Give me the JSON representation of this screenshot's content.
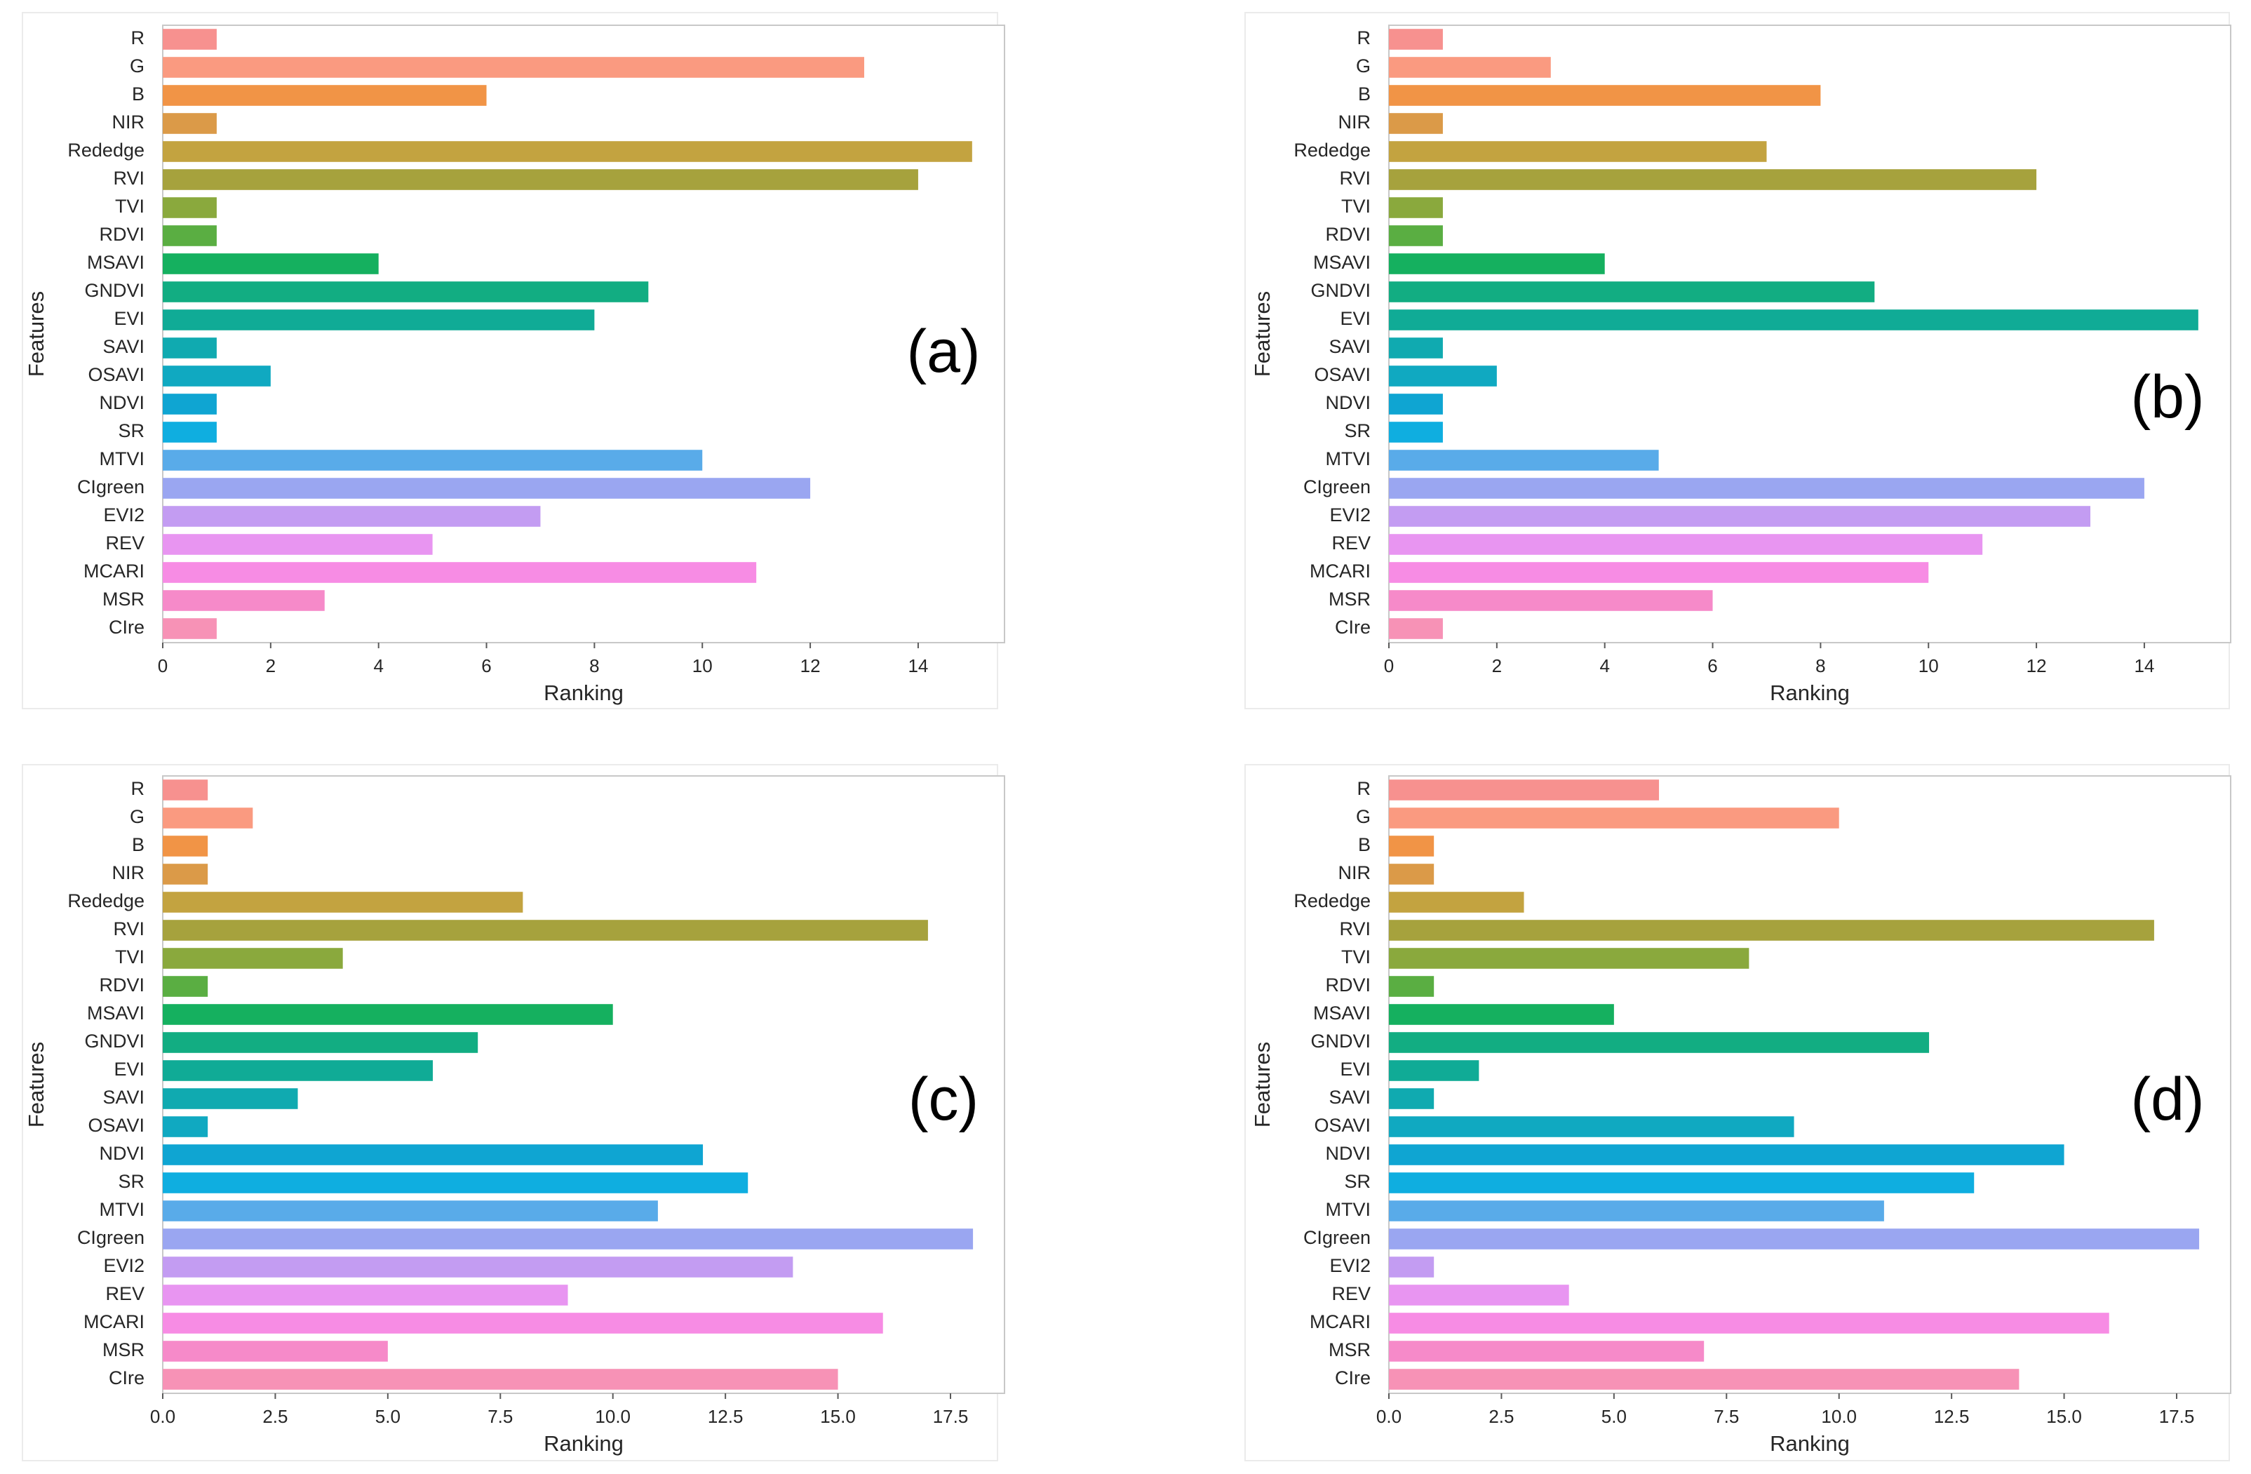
{
  "chart_data": [
    {
      "type": "bar",
      "orientation": "horizontal",
      "panel_label": "(a)",
      "xlabel": "Ranking",
      "ylabel": "Features",
      "xlim": [
        0,
        15.6
      ],
      "xticks": [
        0,
        2,
        4,
        6,
        8,
        10,
        12,
        14
      ],
      "xtick_labels": [
        "0",
        "2",
        "4",
        "6",
        "8",
        "10",
        "12",
        "14"
      ],
      "grid": false,
      "categories": [
        "R",
        "G",
        "B",
        "NIR",
        "Rededge",
        "RVI",
        "TVI",
        "RDVI",
        "MSAVI",
        "GNDVI",
        "EVI",
        "SAVI",
        "OSAVI",
        "NDVI",
        "SR",
        "MTVI",
        "CIgreen",
        "EVI2",
        "REV",
        "MCARI",
        "MSR",
        "CIre"
      ],
      "values": [
        1,
        13,
        6,
        1,
        15,
        14,
        1,
        1,
        4,
        9,
        8,
        1,
        2,
        1,
        1,
        10,
        12,
        7,
        5,
        11,
        3,
        1
      ]
    },
    {
      "type": "bar",
      "orientation": "horizontal",
      "panel_label": "(b)",
      "xlabel": "Ranking",
      "ylabel": "Features",
      "xlim": [
        0,
        15.6
      ],
      "xticks": [
        0,
        2,
        4,
        6,
        8,
        10,
        12,
        14
      ],
      "xtick_labels": [
        "0",
        "2",
        "4",
        "6",
        "8",
        "10",
        "12",
        "14"
      ],
      "grid": false,
      "categories": [
        "R",
        "G",
        "B",
        "NIR",
        "Rededge",
        "RVI",
        "TVI",
        "RDVI",
        "MSAVI",
        "GNDVI",
        "EVI",
        "SAVI",
        "OSAVI",
        "NDVI",
        "SR",
        "MTVI",
        "CIgreen",
        "EVI2",
        "REV",
        "MCARI",
        "MSR",
        "CIre"
      ],
      "values": [
        1,
        3,
        8,
        1,
        7,
        12,
        1,
        1,
        4,
        9,
        15,
        1,
        2,
        1,
        1,
        5,
        14,
        13,
        11,
        10,
        6,
        1
      ]
    },
    {
      "type": "bar",
      "orientation": "horizontal",
      "panel_label": "(c)",
      "xlabel": "Ranking",
      "ylabel": "Features",
      "xlim": [
        0,
        18.7
      ],
      "xticks": [
        0,
        2.5,
        5,
        7.5,
        10,
        12.5,
        15,
        17.5
      ],
      "xtick_labels": [
        "0.0",
        "2.5",
        "5.0",
        "7.5",
        "10.0",
        "12.5",
        "15.0",
        "17.5"
      ],
      "grid": false,
      "categories": [
        "R",
        "G",
        "B",
        "NIR",
        "Rededge",
        "RVI",
        "TVI",
        "RDVI",
        "MSAVI",
        "GNDVI",
        "EVI",
        "SAVI",
        "OSAVI",
        "NDVI",
        "SR",
        "MTVI",
        "CIgreen",
        "EVI2",
        "REV",
        "MCARI",
        "MSR",
        "CIre"
      ],
      "values": [
        1,
        2,
        1,
        1,
        8,
        17,
        4,
        1,
        10,
        7,
        6,
        3,
        1,
        12,
        13,
        11,
        18,
        14,
        9,
        16,
        5,
        15
      ]
    },
    {
      "type": "bar",
      "orientation": "horizontal",
      "panel_label": "(d)",
      "xlabel": "Ranking",
      "ylabel": "Features",
      "xlim": [
        0,
        18.7
      ],
      "xticks": [
        0,
        2.5,
        5,
        7.5,
        10,
        12.5,
        15,
        17.5
      ],
      "xtick_labels": [
        "0.0",
        "2.5",
        "5.0",
        "7.5",
        "10.0",
        "12.5",
        "15.0",
        "17.5"
      ],
      "grid": false,
      "categories": [
        "R",
        "G",
        "B",
        "NIR",
        "Rededge",
        "RVI",
        "TVI",
        "RDVI",
        "MSAVI",
        "GNDVI",
        "EVI",
        "SAVI",
        "OSAVI",
        "NDVI",
        "SR",
        "MTVI",
        "CIgreen",
        "EVI2",
        "REV",
        "MCARI",
        "MSR",
        "CIre"
      ],
      "values": [
        6,
        10,
        1,
        1,
        3,
        17,
        8,
        1,
        5,
        12,
        2,
        1,
        9,
        15,
        13,
        11,
        18,
        1,
        4,
        16,
        7,
        14
      ]
    }
  ],
  "bar_colors": [
    "#f7918f",
    "#fa9a80",
    "#f19446",
    "#db9a48",
    "#c3a340",
    "#a6a23d",
    "#8aa93d",
    "#5aae42",
    "#15b05f",
    "#12ad82",
    "#10ab96",
    "#10aab0",
    "#10a9c1",
    "#0fa5d2",
    "#0faee0",
    "#59abe9",
    "#9aa6f1",
    "#c39cf2",
    "#e895f1",
    "#f78ce4",
    "#f68ac9",
    "#f792b6"
  ]
}
